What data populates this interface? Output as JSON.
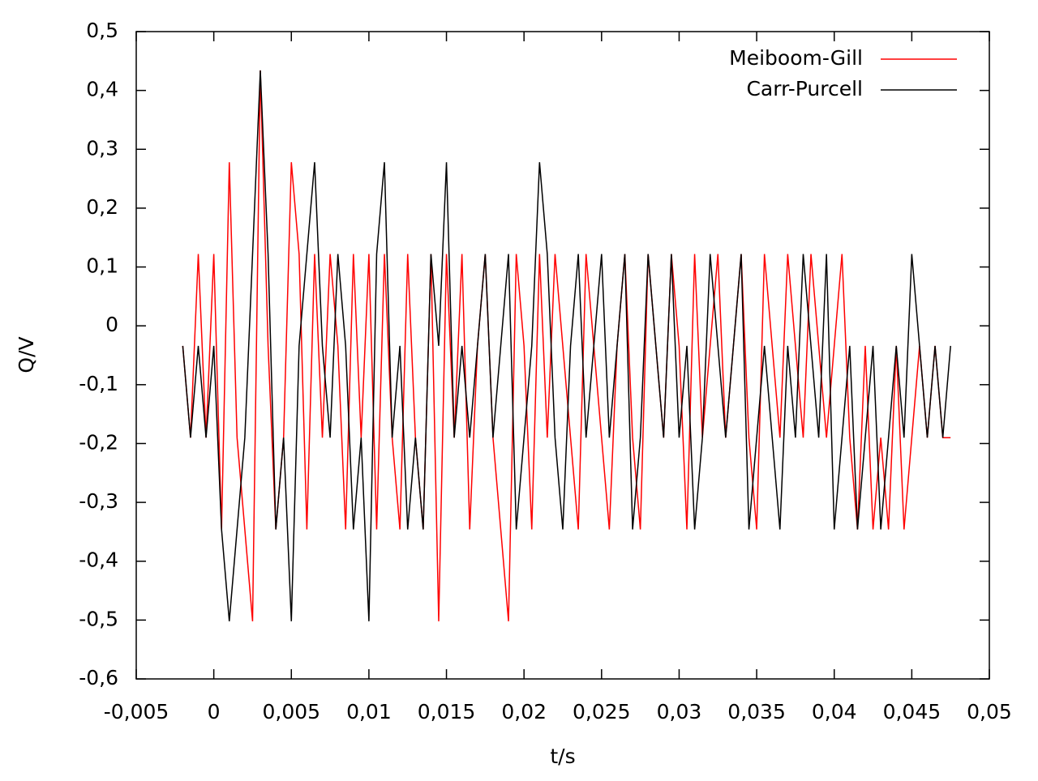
{
  "chart_data": {
    "type": "line",
    "xlabel": "t/s",
    "ylabel": "Q/V",
    "x": [
      -0.002,
      -0.0015,
      -0.001,
      -0.0005,
      0,
      0.0005,
      0.001,
      0.0015,
      0.002,
      0.0025,
      0.003,
      0.0035,
      0.004,
      0.0045,
      0.005,
      0.0055,
      0.006,
      0.0065,
      0.007,
      0.0075,
      0.008,
      0.0085,
      0.009,
      0.0095,
      0.01,
      0.0105,
      0.011,
      0.0115,
      0.012,
      0.0125,
      0.013,
      0.0135,
      0.014,
      0.0145,
      0.015,
      0.0155,
      0.016,
      0.0165,
      0.017,
      0.0175,
      0.018,
      0.0185,
      0.019,
      0.0195,
      0.02,
      0.0205,
      0.021,
      0.0215,
      0.022,
      0.0225,
      0.023,
      0.0235,
      0.024,
      0.0245,
      0.025,
      0.0255,
      0.026,
      0.0265,
      0.027,
      0.0275,
      0.028,
      0.0285,
      0.029,
      0.0295,
      0.03,
      0.0305,
      0.031,
      0.0315,
      0.032,
      0.0325,
      0.033,
      0.0335,
      0.034,
      0.0345,
      0.035,
      0.0355,
      0.036,
      0.0365,
      0.037,
      0.0375,
      0.038,
      0.0385,
      0.039,
      0.0395,
      0.04,
      0.0405,
      0.041,
      0.0415,
      0.042,
      0.0425,
      0.043,
      0.0435,
      0.044,
      0.0445,
      0.045,
      0.0455,
      0.046,
      0.0465,
      0.047,
      0.0475
    ],
    "series": [
      {
        "name": "Meiboom-Gill",
        "color": "#ff0000",
        "values": [
          -0.034,
          -0.19,
          0.122,
          -0.19,
          0.122,
          -0.346,
          0.278,
          -0.19,
          -0.346,
          -0.502,
          0.434,
          -0.034,
          -0.346,
          -0.19,
          0.278,
          0.122,
          -0.346,
          0.122,
          -0.19,
          0.122,
          -0.034,
          -0.346,
          0.122,
          -0.19,
          0.122,
          -0.346,
          0.122,
          -0.19,
          -0.346,
          0.122,
          -0.19,
          -0.346,
          0.122,
          -0.502,
          0.122,
          -0.19,
          0.122,
          -0.346,
          -0.034,
          0.122,
          -0.19,
          -0.346,
          -0.502,
          0.122,
          -0.034,
          -0.346,
          0.122,
          -0.19,
          0.122,
          -0.034,
          -0.19,
          -0.346,
          0.122,
          -0.034,
          -0.19,
          -0.346,
          -0.034,
          0.122,
          -0.19,
          -0.346,
          0.122,
          -0.034,
          -0.19,
          0.122,
          -0.034,
          -0.346,
          0.122,
          -0.19,
          -0.034,
          0.122,
          -0.19,
          -0.034,
          0.122,
          -0.19,
          -0.346,
          0.122,
          -0.034,
          -0.19,
          0.122,
          -0.034,
          -0.19,
          0.122,
          -0.034,
          -0.19,
          -0.034,
          0.122,
          -0.19,
          -0.346,
          -0.034,
          -0.346,
          -0.19,
          -0.346,
          -0.034,
          -0.346,
          -0.19,
          -0.034,
          -0.19,
          -0.034,
          -0.19,
          -0.19
        ]
      },
      {
        "name": "Carr-Purcell",
        "color": "#000000",
        "values": [
          -0.034,
          -0.19,
          -0.034,
          -0.19,
          -0.034,
          -0.346,
          -0.502,
          -0.346,
          -0.19,
          0.122,
          0.434,
          0.122,
          -0.346,
          -0.19,
          -0.502,
          -0.034,
          0.122,
          0.278,
          -0.034,
          -0.19,
          0.122,
          -0.034,
          -0.346,
          -0.19,
          -0.502,
          0.122,
          0.278,
          -0.19,
          -0.034,
          -0.346,
          -0.19,
          -0.346,
          0.122,
          -0.034,
          0.278,
          -0.19,
          -0.034,
          -0.19,
          -0.034,
          0.122,
          -0.19,
          -0.034,
          0.122,
          -0.346,
          -0.19,
          -0.034,
          0.278,
          0.122,
          -0.19,
          -0.346,
          -0.034,
          0.122,
          -0.19,
          -0.034,
          0.122,
          -0.19,
          -0.034,
          0.122,
          -0.346,
          -0.19,
          0.122,
          -0.034,
          -0.19,
          0.122,
          -0.19,
          -0.034,
          -0.346,
          -0.19,
          0.122,
          -0.034,
          -0.19,
          -0.034,
          0.122,
          -0.346,
          -0.19,
          -0.034,
          -0.19,
          -0.346,
          -0.034,
          -0.19,
          0.122,
          -0.034,
          -0.19,
          0.122,
          -0.346,
          -0.19,
          -0.034,
          -0.346,
          -0.19,
          -0.034,
          -0.346,
          -0.19,
          -0.034,
          -0.19,
          0.122,
          -0.034,
          -0.19,
          -0.034,
          -0.19,
          -0.034
        ]
      }
    ],
    "xlim": [
      -0.005,
      0.05
    ],
    "xticks": [
      {
        "value": -0.005,
        "label": "-0,005"
      },
      0,
      {
        "value": 0.005,
        "label": "0,005"
      },
      {
        "value": 0.01,
        "label": "0,01"
      },
      {
        "value": 0.015,
        "label": "0,015"
      },
      {
        "value": 0.02,
        "label": "0,02"
      },
      {
        "value": 0.025,
        "label": "0,025"
      },
      {
        "value": 0.03,
        "label": "0,03"
      },
      {
        "value": 0.035,
        "label": "0,035"
      },
      {
        "value": 0.04,
        "label": "0,04"
      },
      {
        "value": 0.045,
        "label": "0,045"
      },
      {
        "value": 0.05,
        "label": "0,05"
      }
    ],
    "ylim": [
      -0.6,
      0.5
    ],
    "yticks": [
      {
        "value": -0.6,
        "label": "-0,6"
      },
      {
        "value": -0.5,
        "label": "-0,5"
      },
      {
        "value": -0.4,
        "label": "-0,4"
      },
      {
        "value": -0.3,
        "label": "-0,3"
      },
      {
        "value": -0.2,
        "label": "-0,2"
      },
      {
        "value": -0.1,
        "label": "-0,1"
      },
      0,
      {
        "value": 0.1,
        "label": "0,1"
      },
      {
        "value": 0.2,
        "label": "0,2"
      },
      {
        "value": 0.3,
        "label": "0,3"
      },
      {
        "value": 0.4,
        "label": "0,4"
      },
      {
        "value": 0.5,
        "label": "0,5"
      }
    ],
    "legend": "top-right"
  }
}
